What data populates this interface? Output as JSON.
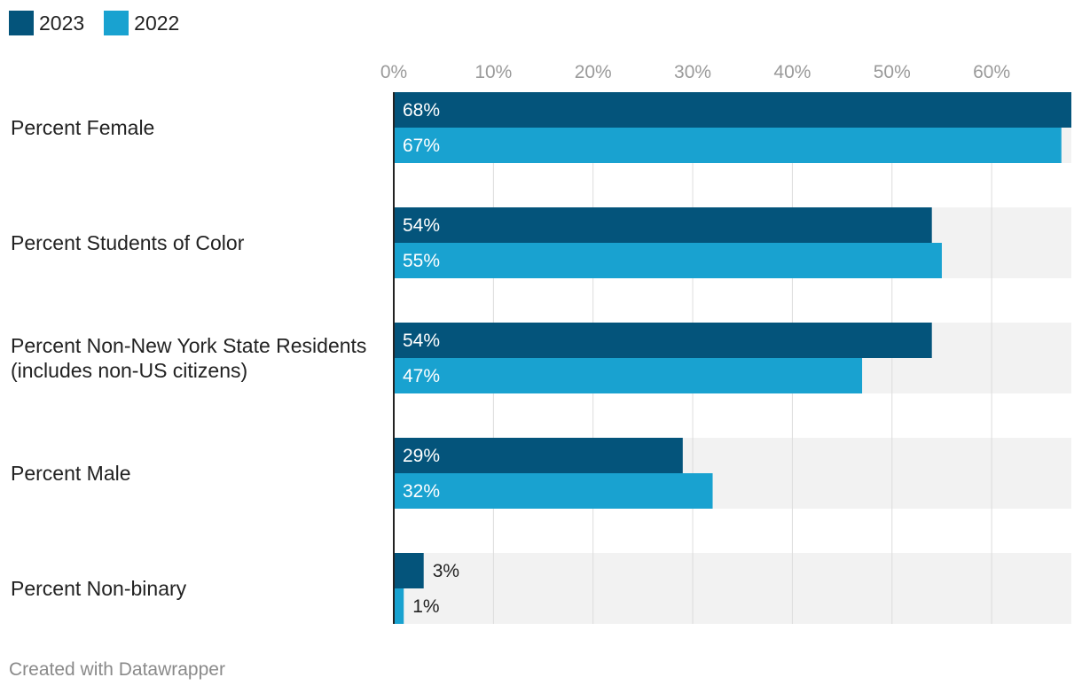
{
  "legend": [
    {
      "label": "2023",
      "color": "#04547b"
    },
    {
      "label": "2022",
      "color": "#19a2d0"
    }
  ],
  "footer": "Created with Datawrapper",
  "chart_data": {
    "type": "bar",
    "orientation": "horizontal",
    "title": "",
    "xlabel": "",
    "ylabel": "",
    "xlim": [
      0,
      68
    ],
    "x_ticks": [
      "0%",
      "10%",
      "20%",
      "30%",
      "40%",
      "50%",
      "60%"
    ],
    "x_tick_values": [
      0,
      10,
      20,
      30,
      40,
      50,
      60
    ],
    "grid": true,
    "legend_position": "top-left",
    "categories": [
      [
        "Percent Female"
      ],
      [
        "Percent Students of Color"
      ],
      [
        "Percent Non-New York State Residents",
        "(includes non-US citizens)"
      ],
      [
        "Percent Male"
      ],
      [
        "Percent Non-binary"
      ]
    ],
    "series": [
      {
        "name": "2023",
        "color": "#04547b",
        "values": [
          68,
          54,
          54,
          29,
          3
        ],
        "labels": [
          "68%",
          "54%",
          "54%",
          "29%",
          "3%"
        ]
      },
      {
        "name": "2022",
        "color": "#19a2d0",
        "values": [
          67,
          55,
          47,
          32,
          1
        ],
        "labels": [
          "67%",
          "55%",
          "47%",
          "32%",
          "1%"
        ]
      }
    ]
  }
}
